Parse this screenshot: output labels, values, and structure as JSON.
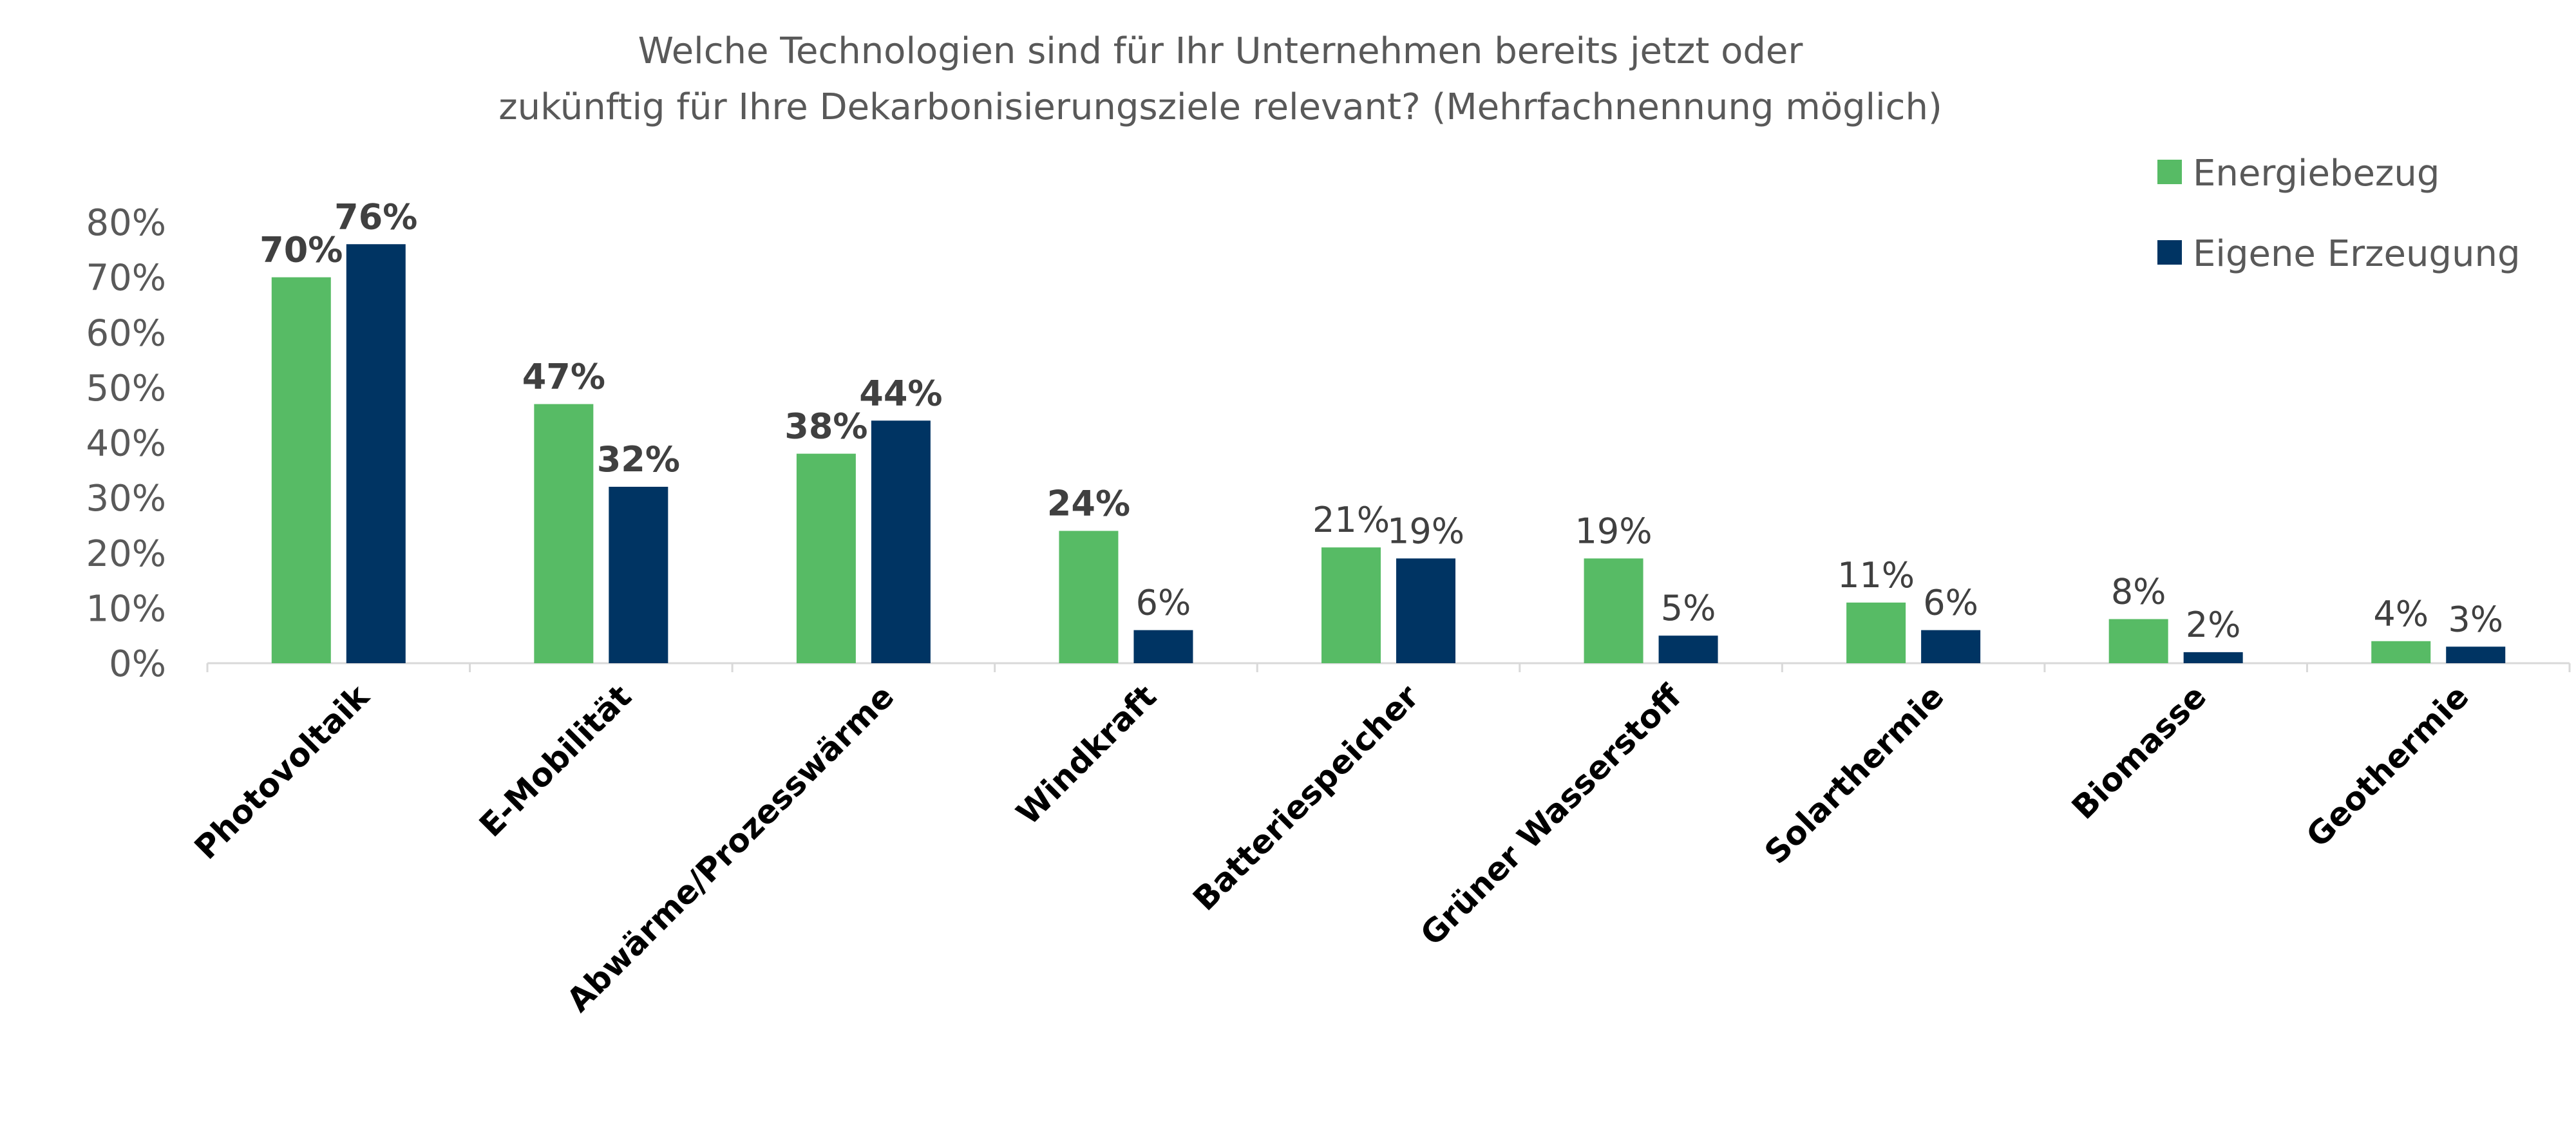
{
  "chart_data": {
    "type": "bar",
    "title": [
      "Welche Technologien sind für Ihr Unternehmen bereits jetzt oder",
      "zukünftig für Ihre Dekarbonisierungsziele relevant? (Mehrfachnennung möglich)"
    ],
    "categories": [
      "Photovoltaik",
      "E-Mobilität",
      "Abwärme/Prozesswärme",
      "Windkraft",
      "Batteriespeicher",
      "Grüner Wasserstoff",
      "Solarthermie",
      "Biomasse",
      "Geothermie"
    ],
    "series": [
      {
        "name": "Energiebezug",
        "color": "#57BB65",
        "values": [
          70,
          47,
          38,
          24,
          21,
          19,
          11,
          8,
          4
        ],
        "labels": [
          "70%",
          "47%",
          "38%",
          "24%",
          "21%",
          "19%",
          "11%",
          "8%",
          "4%"
        ]
      },
      {
        "name": "Eigene Erzeugung",
        "color": "#003463",
        "values": [
          76,
          32,
          44,
          6,
          19,
          5,
          6,
          2,
          3
        ],
        "labels": [
          "76%",
          "32%",
          "44%",
          "6%",
          "19%",
          "5%",
          "6%",
          "2%",
          "3%"
        ]
      }
    ],
    "ylim": [
      0,
      80
    ],
    "yticks": [
      "0%",
      "10%",
      "20%",
      "30%",
      "40%",
      "50%",
      "60%",
      "70%",
      "80%"
    ],
    "xlabel": "",
    "ylabel": "",
    "legend_position": "top-right"
  }
}
